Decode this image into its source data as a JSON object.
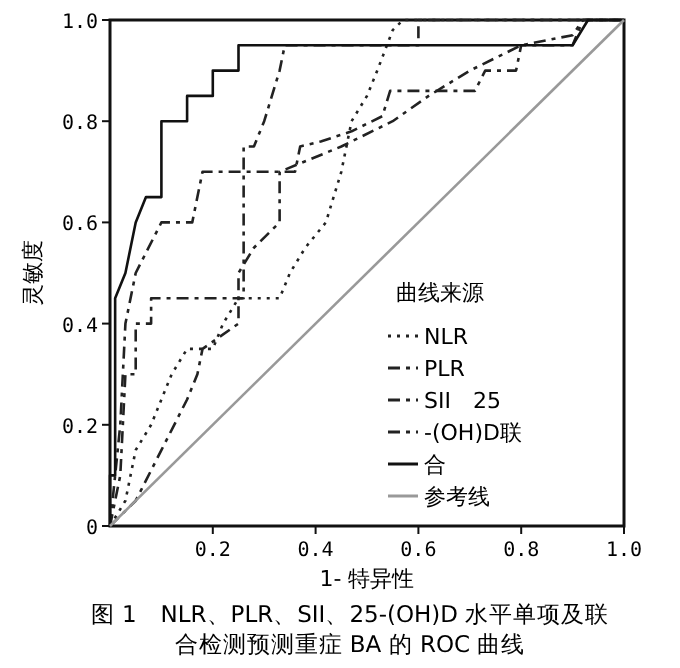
{
  "chart_data": {
    "type": "line",
    "title": "图 1　NLR、PLR、SII、25-(OH)D 水平单项及联合检测预测重症 BA 的 ROC 曲线",
    "xlabel": "1- 特异性",
    "ylabel": "灵敏度",
    "legend_title": "曲线来源",
    "legend": "bottom right",
    "grid": false,
    "marker": "none",
    "xlim": [
      0,
      1
    ],
    "ylim": [
      0,
      1
    ],
    "xticks": [
      0.2,
      0.4,
      0.6,
      0.8,
      {
        "value": 1,
        "label": "1.0"
      }
    ],
    "yticks": [
      0,
      0.2,
      0.4,
      0.6,
      0.8,
      {
        "value": 1,
        "label": "1.0"
      }
    ],
    "series": [
      {
        "name": "NLR",
        "color": "#222222",
        "line_style": "dotted",
        "x": [
          0,
          0.03,
          0.05,
          0.08,
          0.1,
          0.12,
          0.15,
          0.2,
          0.22,
          0.25,
          0.33,
          0.35,
          0.38,
          0.42,
          0.45,
          0.47,
          0.5,
          0.52,
          0.55,
          0.57,
          1
        ],
        "values": [
          0,
          0.05,
          0.15,
          0.2,
          0.25,
          0.3,
          0.35,
          0.35,
          0.4,
          0.45,
          0.45,
          0.5,
          0.55,
          0.6,
          0.7,
          0.8,
          0.85,
          0.9,
          0.98,
          1,
          1
        ]
      },
      {
        "name": "PLR",
        "color": "#222222",
        "line_style": "dashed",
        "x": [
          0,
          0.02,
          0.03,
          0.05,
          0.1,
          0.16,
          0.18,
          0.36,
          0.37,
          0.41,
          0.47,
          0.53,
          0.545,
          0.71,
          0.73,
          0.79,
          0.8,
          0.9,
          0.92,
          1
        ],
        "values": [
          0,
          0.2,
          0.4,
          0.5,
          0.6,
          0.6,
          0.7,
          0.7,
          0.75,
          0.76,
          0.78,
          0.81,
          0.86,
          0.86,
          0.9,
          0.9,
          0.95,
          0.95,
          1,
          1
        ]
      },
      {
        "name": "SII　25",
        "color": "#222222",
        "line_style": "dashed",
        "x": [
          0,
          0.02,
          0.03,
          0.05,
          0.05,
          0.08,
          0.08,
          0.26,
          0.26,
          0.28,
          0.3,
          0.33,
          0.34,
          0.6,
          0.6,
          1
        ],
        "values": [
          0,
          0.1,
          0.3,
          0.3,
          0.4,
          0.4,
          0.45,
          0.45,
          0.75,
          0.75,
          0.8,
          0.9,
          0.95,
          0.95,
          1,
          1
        ]
      },
      {
        "name": "-(OH)D联",
        "color": "#222222",
        "line_style": "dashed",
        "x": [
          0,
          0.05,
          0.1,
          0.15,
          0.17,
          0.18,
          0.25,
          0.25,
          0.28,
          0.33,
          0.33,
          0.45,
          0.55,
          0.62,
          0.7,
          0.8,
          0.9,
          0.92,
          1
        ],
        "values": [
          0,
          0.05,
          0.15,
          0.25,
          0.3,
          0.35,
          0.4,
          0.5,
          0.55,
          0.6,
          0.7,
          0.75,
          0.8,
          0.85,
          0.9,
          0.95,
          0.97,
          1,
          1
        ]
      },
      {
        "name": "合",
        "color": "#111111",
        "line_style": "solid",
        "x": [
          0,
          0,
          0.01,
          0.01,
          0.03,
          0.05,
          0.07,
          0.1,
          0.1,
          0.15,
          0.15,
          0.2,
          0.2,
          0.25,
          0.25,
          0.9,
          0.93,
          1
        ],
        "values": [
          0,
          0.1,
          0.1,
          0.45,
          0.5,
          0.6,
          0.65,
          0.65,
          0.8,
          0.8,
          0.85,
          0.85,
          0.9,
          0.9,
          0.95,
          0.95,
          1,
          1
        ]
      },
      {
        "name": "参考线",
        "color": "#999999",
        "line_style": "solid",
        "x": [
          0,
          1
        ],
        "values": [
          0,
          1
        ]
      }
    ]
  }
}
